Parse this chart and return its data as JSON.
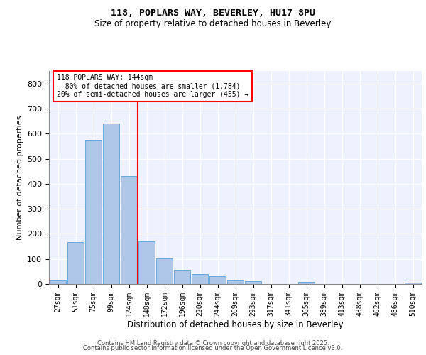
{
  "title1": "118, POPLARS WAY, BEVERLEY, HU17 8PU",
  "title2": "Size of property relative to detached houses in Beverley",
  "xlabel": "Distribution of detached houses by size in Beverley",
  "ylabel": "Number of detached properties",
  "bar_labels": [
    "27sqm",
    "51sqm",
    "75sqm",
    "99sqm",
    "124sqm",
    "148sqm",
    "172sqm",
    "196sqm",
    "220sqm",
    "244sqm",
    "269sqm",
    "293sqm",
    "317sqm",
    "341sqm",
    "365sqm",
    "389sqm",
    "413sqm",
    "438sqm",
    "462sqm",
    "486sqm",
    "510sqm"
  ],
  "bar_values": [
    15,
    168,
    575,
    640,
    430,
    170,
    103,
    57,
    40,
    30,
    13,
    11,
    0,
    0,
    8,
    0,
    0,
    0,
    0,
    0,
    6
  ],
  "bar_color": "#aec6e8",
  "bar_edge_color": "#5a9fd4",
  "vline_color": "red",
  "vline_x_index": 5,
  "annotation_title": "118 POPLARS WAY: 144sqm",
  "annotation_line1": "← 80% of detached houses are smaller (1,784)",
  "annotation_line2": "20% of semi-detached houses are larger (455) →",
  "annotation_box_color": "white",
  "annotation_box_edge": "red",
  "ylim": [
    0,
    850
  ],
  "yticks": [
    0,
    100,
    200,
    300,
    400,
    500,
    600,
    700,
    800
  ],
  "background_color": "#eef2ff",
  "grid_color": "white",
  "footer1": "Contains HM Land Registry data © Crown copyright and database right 2025.",
  "footer2": "Contains public sector information licensed under the Open Government Licence v3.0."
}
